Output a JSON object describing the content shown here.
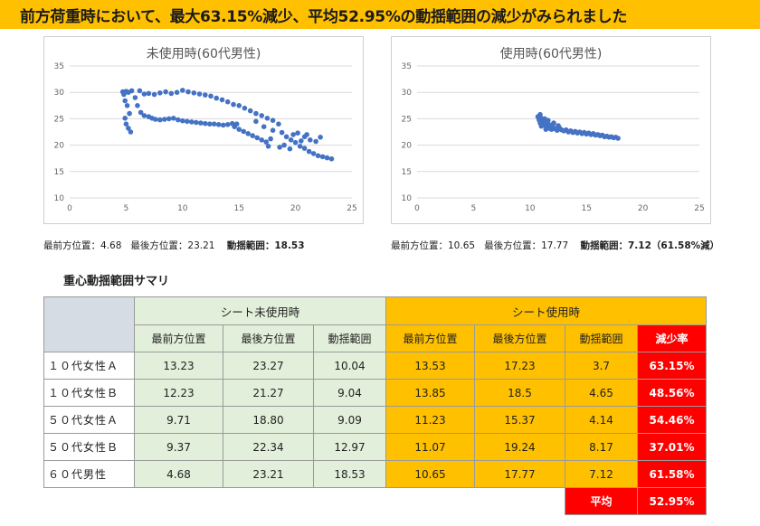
{
  "banner": {
    "title": "前方荷重時において、最大63.15%減少、平均52.95%の動揺範囲の減少がみられました"
  },
  "charts": {
    "left_title": "未使用時(60代男性)",
    "right_title": "使用時(60代男性)"
  },
  "chart_data": [
    {
      "type": "scatter",
      "title": "未使用時(60代男性)",
      "xlabel": "",
      "ylabel": "",
      "xlim": [
        0,
        25
      ],
      "ylim": [
        10,
        35
      ],
      "xticks": [
        0,
        5,
        10,
        15,
        20,
        25
      ],
      "yticks": [
        10,
        15,
        20,
        25,
        30,
        35
      ],
      "grid": true,
      "points": [
        [
          4.7,
          30.1
        ],
        [
          4.8,
          29.6
        ],
        [
          5.0,
          30.2
        ],
        [
          5.2,
          30.0
        ],
        [
          5.5,
          30.3
        ],
        [
          4.9,
          28.4
        ],
        [
          5.1,
          27.5
        ],
        [
          5.3,
          26.0
        ],
        [
          5.0,
          24.0
        ],
        [
          5.2,
          23.2
        ],
        [
          5.4,
          22.5
        ],
        [
          4.9,
          25.1
        ],
        [
          5.8,
          29.0
        ],
        [
          6.0,
          27.5
        ],
        [
          6.3,
          26.2
        ],
        [
          6.6,
          25.6
        ],
        [
          7.0,
          25.4
        ],
        [
          7.3,
          25.1
        ],
        [
          7.6,
          24.9
        ],
        [
          8.0,
          24.8
        ],
        [
          8.4,
          24.9
        ],
        [
          8.8,
          25.0
        ],
        [
          9.2,
          25.1
        ],
        [
          9.6,
          24.8
        ],
        [
          10.0,
          24.6
        ],
        [
          10.4,
          24.5
        ],
        [
          10.8,
          24.4
        ],
        [
          11.2,
          24.3
        ],
        [
          11.6,
          24.2
        ],
        [
          12.0,
          24.1
        ],
        [
          12.4,
          24.0
        ],
        [
          12.8,
          24.0
        ],
        [
          13.2,
          23.9
        ],
        [
          13.6,
          23.8
        ],
        [
          14.0,
          23.9
        ],
        [
          14.4,
          24.1
        ],
        [
          14.8,
          24.0
        ],
        [
          6.2,
          30.3
        ],
        [
          6.6,
          29.7
        ],
        [
          7.0,
          29.8
        ],
        [
          7.5,
          29.6
        ],
        [
          8.0,
          29.9
        ],
        [
          8.5,
          30.1
        ],
        [
          9.0,
          29.8
        ],
        [
          9.5,
          30.0
        ],
        [
          10.0,
          30.4
        ],
        [
          10.5,
          30.1
        ],
        [
          11.0,
          29.9
        ],
        [
          11.5,
          29.7
        ],
        [
          12.0,
          29.5
        ],
        [
          12.5,
          29.3
        ],
        [
          13.0,
          28.9
        ],
        [
          13.5,
          28.6
        ],
        [
          14.0,
          28.2
        ],
        [
          14.5,
          27.7
        ],
        [
          15.0,
          27.5
        ],
        [
          15.5,
          27.0
        ],
        [
          16.0,
          26.5
        ],
        [
          16.5,
          26.0
        ],
        [
          17.0,
          25.6
        ],
        [
          17.5,
          25.1
        ],
        [
          18.0,
          24.7
        ],
        [
          18.5,
          24.0
        ],
        [
          14.6,
          23.5
        ],
        [
          15.0,
          23.0
        ],
        [
          15.4,
          22.6
        ],
        [
          15.8,
          22.2
        ],
        [
          16.2,
          21.8
        ],
        [
          16.6,
          21.4
        ],
        [
          17.0,
          21.0
        ],
        [
          17.4,
          20.6
        ],
        [
          17.8,
          21.2
        ],
        [
          16.5,
          24.5
        ],
        [
          17.2,
          23.5
        ],
        [
          18.0,
          22.8
        ],
        [
          18.8,
          22.4
        ],
        [
          19.2,
          21.6
        ],
        [
          19.6,
          21.0
        ],
        [
          20.0,
          20.5
        ],
        [
          20.4,
          19.8
        ],
        [
          20.8,
          19.4
        ],
        [
          21.2,
          18.8
        ],
        [
          21.6,
          18.4
        ],
        [
          22.0,
          18.0
        ],
        [
          22.4,
          17.8
        ],
        [
          22.8,
          17.6
        ],
        [
          23.2,
          17.4
        ],
        [
          19.0,
          20.0
        ],
        [
          19.5,
          19.3
        ],
        [
          20.2,
          22.3
        ],
        [
          20.8,
          21.6
        ],
        [
          21.3,
          21.0
        ],
        [
          21.8,
          20.7
        ],
        [
          22.2,
          21.5
        ],
        [
          21.0,
          22.0
        ],
        [
          20.5,
          20.8
        ],
        [
          19.8,
          22.0
        ],
        [
          18.6,
          19.6
        ],
        [
          17.6,
          19.8
        ]
      ]
    },
    {
      "type": "scatter",
      "title": "使用時(60代男性)",
      "xlabel": "",
      "ylabel": "",
      "xlim": [
        0,
        25
      ],
      "ylim": [
        10,
        35
      ],
      "xticks": [
        0,
        5,
        10,
        15,
        20,
        25
      ],
      "yticks": [
        10,
        15,
        20,
        25,
        30,
        35
      ],
      "grid": true,
      "points": [
        [
          10.7,
          25.4
        ],
        [
          10.8,
          24.8
        ],
        [
          10.9,
          24.2
        ],
        [
          11.0,
          25.1
        ],
        [
          11.1,
          24.0
        ],
        [
          11.2,
          24.6
        ],
        [
          11.3,
          23.8
        ],
        [
          11.4,
          24.3
        ],
        [
          11.5,
          23.5
        ],
        [
          11.6,
          24.0
        ],
        [
          11.7,
          23.2
        ],
        [
          11.8,
          23.8
        ],
        [
          11.9,
          23.0
        ],
        [
          12.0,
          23.6
        ],
        [
          12.2,
          23.1
        ],
        [
          12.4,
          22.8
        ],
        [
          12.6,
          23.3
        ],
        [
          12.8,
          22.9
        ],
        [
          13.0,
          22.7
        ],
        [
          13.2,
          22.9
        ],
        [
          13.4,
          22.5
        ],
        [
          13.6,
          22.7
        ],
        [
          13.8,
          22.4
        ],
        [
          14.0,
          22.6
        ],
        [
          14.2,
          22.3
        ],
        [
          14.4,
          22.5
        ],
        [
          14.6,
          22.2
        ],
        [
          14.8,
          22.4
        ],
        [
          15.0,
          22.1
        ],
        [
          15.2,
          22.3
        ],
        [
          15.4,
          22.0
        ],
        [
          15.6,
          22.2
        ],
        [
          15.8,
          21.9
        ],
        [
          16.0,
          22.0
        ],
        [
          16.2,
          21.8
        ],
        [
          16.4,
          21.9
        ],
        [
          16.6,
          21.6
        ],
        [
          16.8,
          21.7
        ],
        [
          17.0,
          21.5
        ],
        [
          17.2,
          21.6
        ],
        [
          17.4,
          21.4
        ],
        [
          17.6,
          21.5
        ],
        [
          17.8,
          21.3
        ],
        [
          10.9,
          25.8
        ],
        [
          11.3,
          25.0
        ],
        [
          11.6,
          24.7
        ],
        [
          12.1,
          24.2
        ],
        [
          12.5,
          23.7
        ],
        [
          11.0,
          23.6
        ],
        [
          11.4,
          23.0
        ]
      ]
    }
  ],
  "stats": {
    "left": {
      "front_label": "最前方位置：",
      "front": "4.68",
      "back_label": "最後方位置：",
      "back": "23.21",
      "range_label": "動揺範囲：",
      "range": "18.53"
    },
    "right": {
      "front_label": "最前方位置：",
      "front": "10.65",
      "back_label": "最後方位置：",
      "back": "17.77",
      "range_label": "動揺範囲：",
      "range": "7.12",
      "range_note": "（61.58%減）"
    }
  },
  "summary": {
    "title": "重心動揺範囲サマリ",
    "group_unused": "シート未使用時",
    "group_used": "シート使用時",
    "col_front": "最前方位置",
    "col_back": "最後方位置",
    "col_range": "動揺範囲",
    "col_reduction": "減少率",
    "rows": [
      {
        "label": "１０代女性Ａ",
        "u_front": "13.23",
        "u_back": "23.27",
        "u_range": "10.04",
        "s_front": "13.53",
        "s_back": "17.23",
        "s_range": "3.7",
        "reduction": "63.15%"
      },
      {
        "label": "１０代女性Ｂ",
        "u_front": "12.23",
        "u_back": "21.27",
        "u_range": "9.04",
        "s_front": "13.85",
        "s_back": "18.5",
        "s_range": "4.65",
        "reduction": "48.56%"
      },
      {
        "label": "５０代女性Ａ",
        "u_front": "9.71",
        "u_back": "18.80",
        "u_range": "9.09",
        "s_front": "11.23",
        "s_back": "15.37",
        "s_range": "4.14",
        "reduction": "54.46%"
      },
      {
        "label": "５０代女性Ｂ",
        "u_front": "9.37",
        "u_back": "22.34",
        "u_range": "12.97",
        "s_front": "11.07",
        "s_back": "19.24",
        "s_range": "8.17",
        "reduction": "37.01%"
      },
      {
        "label": "６０代男性",
        "u_front": "4.68",
        "u_back": "23.21",
        "u_range": "18.53",
        "s_front": "10.65",
        "s_back": "17.77",
        "s_range": "7.12",
        "reduction": "61.58%"
      }
    ],
    "average_label": "平均",
    "average_value": "52.95%"
  },
  "colors": {
    "banner": "#ffc000",
    "unused": "#e2efda",
    "used": "#ffc000",
    "reduction": "#ff0000",
    "point": "#4472c4"
  }
}
